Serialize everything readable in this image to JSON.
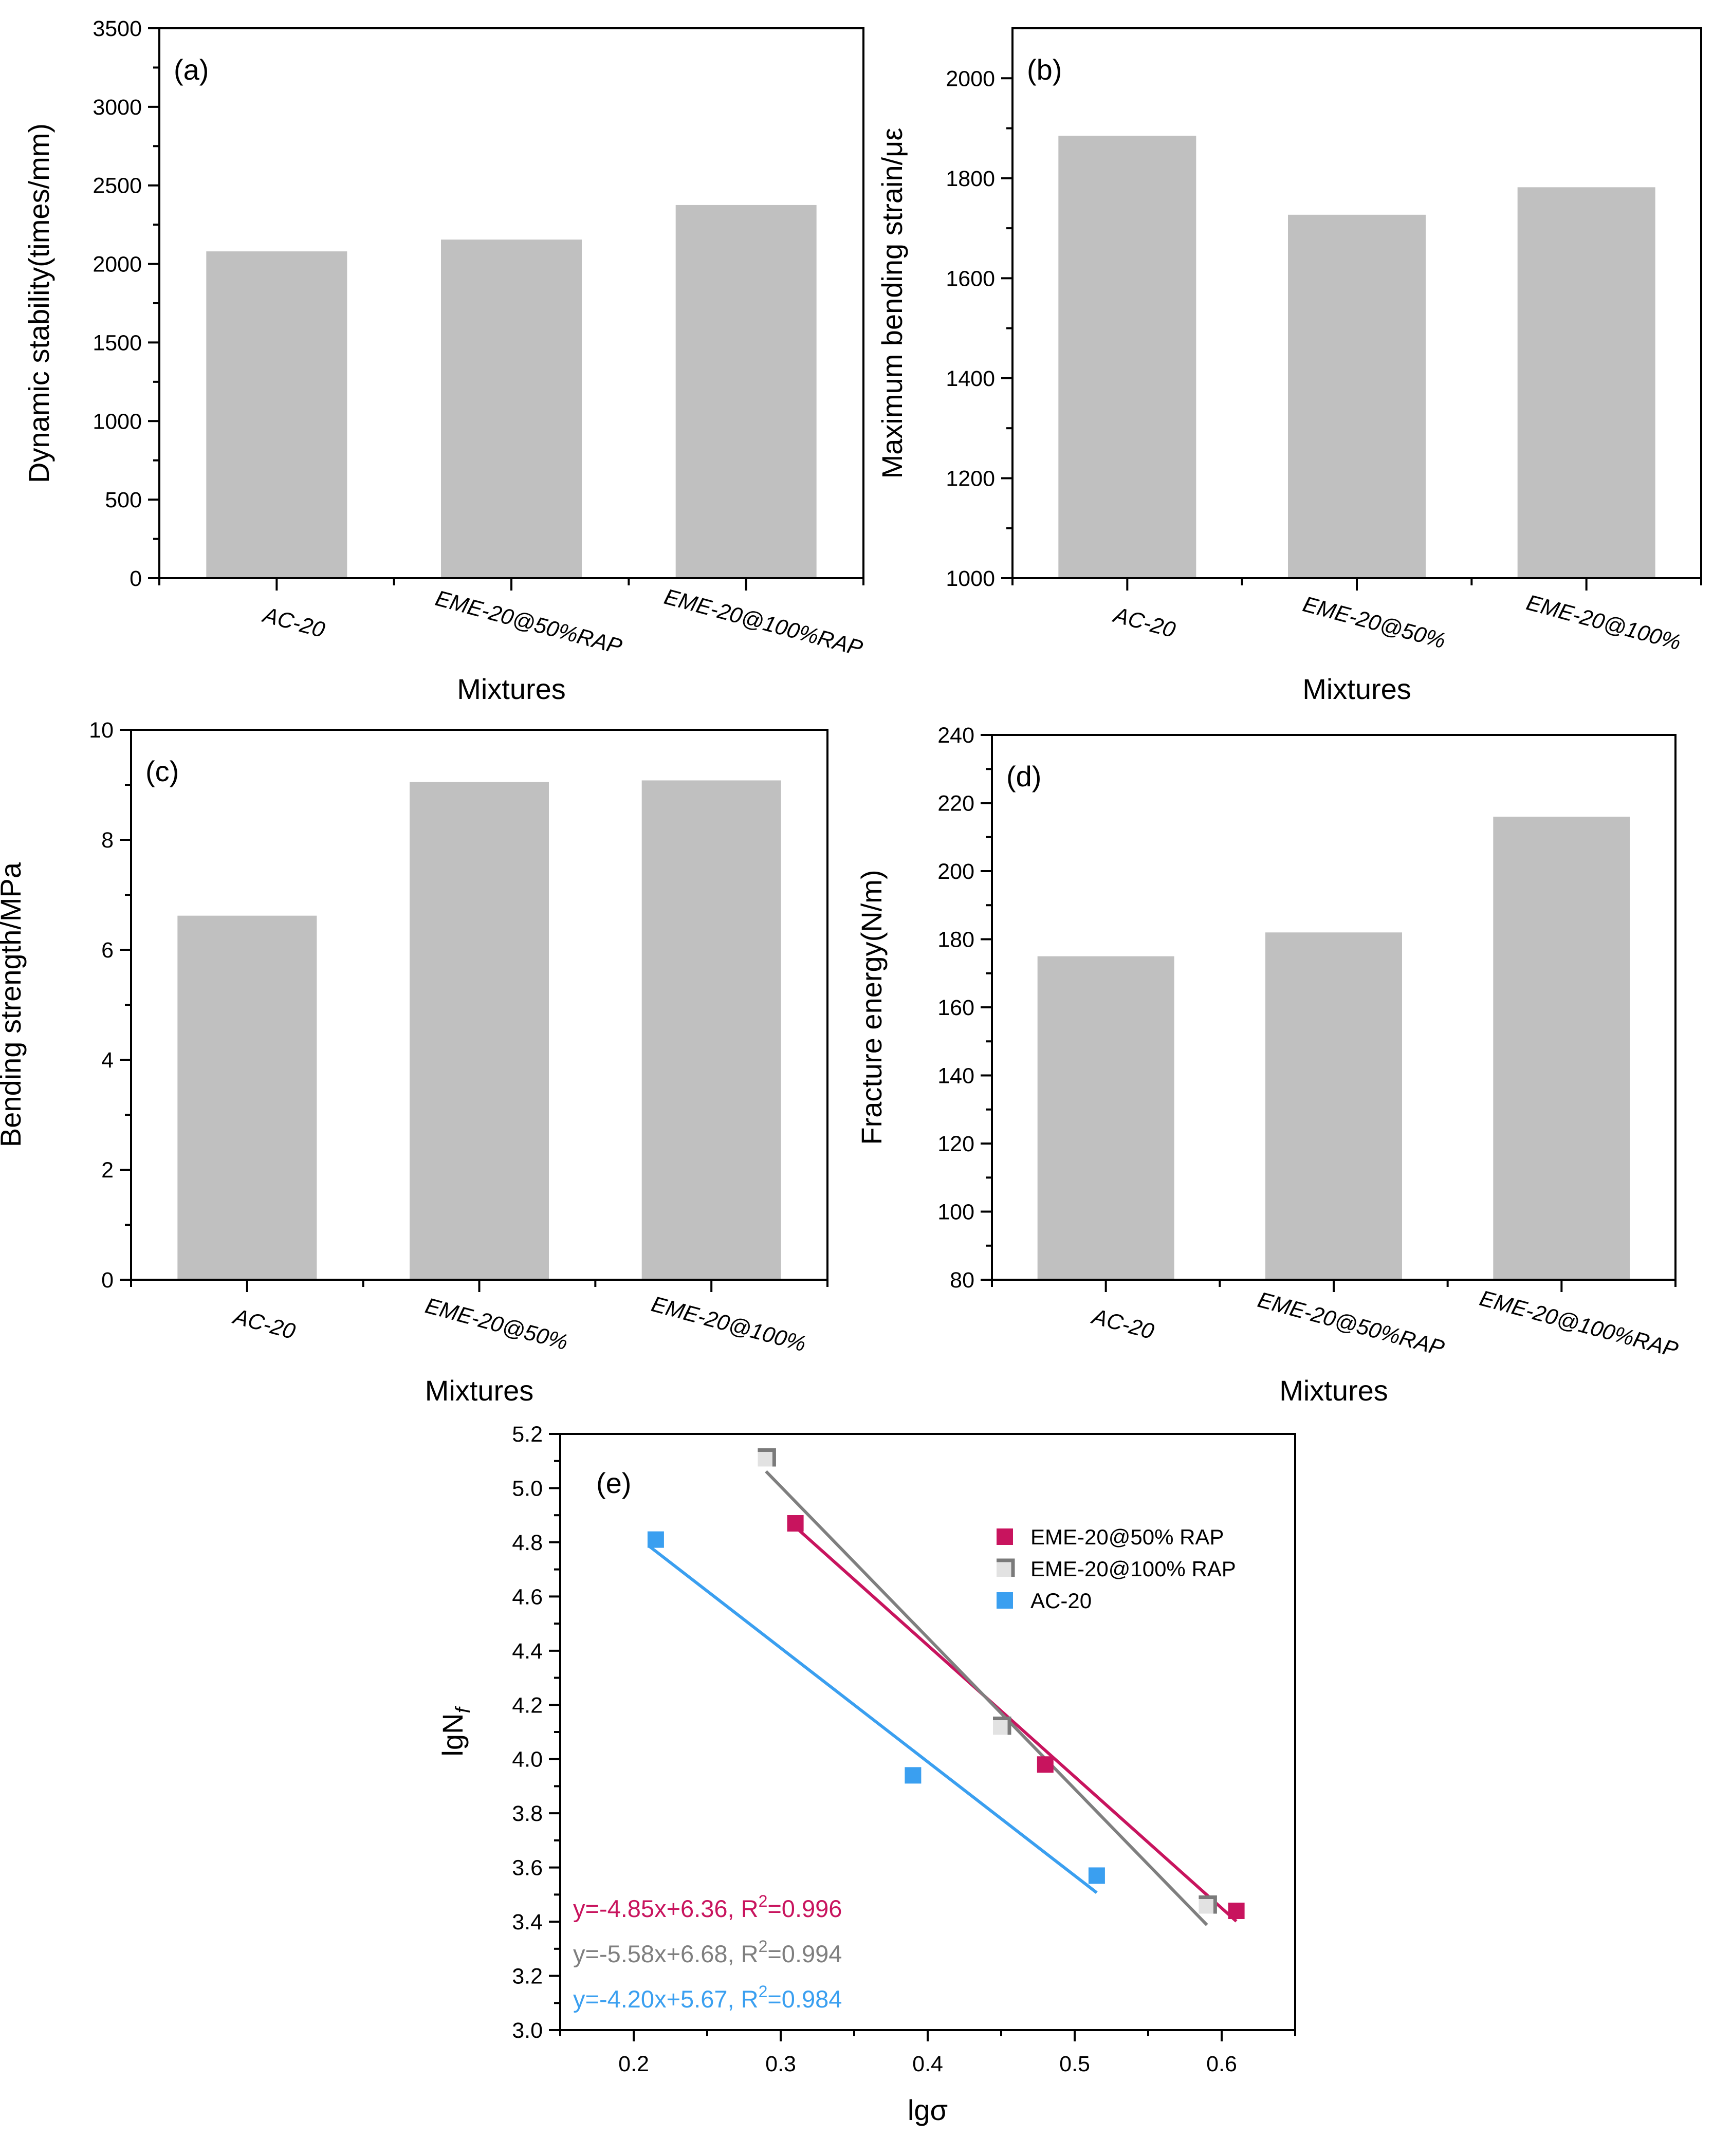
{
  "chart_data": [
    {
      "id": "a",
      "type": "bar",
      "panel_label": "(a)",
      "categories": [
        "AC-20",
        "EME-20@50%RAP",
        "EME-20@100%RAP"
      ],
      "values": [
        2080,
        2155,
        2375
      ],
      "xlabel": "Mixtures",
      "ylabel": "Dynamic stability(times/mm)",
      "ylim": [
        0,
        3500
      ],
      "yticks": [
        0,
        500,
        1000,
        1500,
        2000,
        2500,
        3000,
        3500
      ],
      "ytick_labels": [
        "0",
        "500",
        "1000",
        "1500",
        "2000",
        "2500",
        "3000",
        "3500"
      ],
      "bar_color": "#c0c0c0"
    },
    {
      "id": "b",
      "type": "bar",
      "panel_label": "(b)",
      "categories": [
        "AC-20",
        "EME-20@50%",
        "EME-20@100%"
      ],
      "values": [
        1885,
        1727,
        1782
      ],
      "xlabel": "Mixtures",
      "ylabel": "Maximum bending strain/με",
      "ylim": [
        1000,
        2100
      ],
      "yticks": [
        1000,
        1200,
        1400,
        1600,
        1800,
        2000
      ],
      "ytick_labels": [
        "1000",
        "1200",
        "1400",
        "1600",
        "1800",
        "2000"
      ],
      "bar_color": "#c0c0c0"
    },
    {
      "id": "c",
      "type": "bar",
      "panel_label": "(c)",
      "categories": [
        "AC-20",
        "EME-20@50%",
        "EME-20@100%"
      ],
      "values": [
        6.62,
        9.05,
        9.08
      ],
      "xlabel": "Mixtures",
      "ylabel": "Bending strength/MPa",
      "ylim": [
        0,
        10
      ],
      "yticks": [
        0,
        2,
        4,
        6,
        8,
        10
      ],
      "ytick_labels": [
        "0",
        "2",
        "4",
        "6",
        "8",
        "10"
      ],
      "bar_color": "#c0c0c0"
    },
    {
      "id": "d",
      "type": "bar",
      "panel_label": "(d)",
      "categories": [
        "AC-20",
        "EME-20@50%RAP",
        "EME-20@100%RAP"
      ],
      "values": [
        175,
        182,
        216
      ],
      "xlabel": "Mixtures",
      "ylabel": "Fracture energy(N/m)",
      "ylim": [
        80,
        240
      ],
      "yticks": [
        80,
        100,
        120,
        140,
        160,
        180,
        200,
        220,
        240
      ],
      "ytick_labels": [
        "80",
        "100",
        "120",
        "140",
        "160",
        "180",
        "200",
        "220",
        "240"
      ],
      "bar_color": "#c0c0c0"
    },
    {
      "id": "e",
      "type": "scatter",
      "panel_label": "(e)",
      "xlabel": "lgσ",
      "ylabel_main": "lgN",
      "ylabel_sub": "f",
      "xlim": [
        0.15,
        0.65
      ],
      "ylim": [
        3.0,
        5.2
      ],
      "xticks": [
        0.2,
        0.3,
        0.4,
        0.5,
        0.6
      ],
      "xtick_labels": [
        "0.2",
        "0.3",
        "0.4",
        "0.5",
        "0.6"
      ],
      "yticks": [
        3.0,
        3.2,
        3.4,
        3.6,
        3.8,
        4.0,
        4.2,
        4.4,
        4.6,
        4.8,
        5.0,
        5.2
      ],
      "ytick_labels": [
        "3.0",
        "3.2",
        "3.4",
        "3.6",
        "3.8",
        "4.0",
        "4.2",
        "4.4",
        "4.6",
        "4.8",
        "5.0",
        "5.2"
      ],
      "series": [
        {
          "name": "EME-20@50% RAP",
          "color": "#c8145e",
          "marker": "square",
          "x": [
            0.31,
            0.48,
            0.61
          ],
          "y": [
            4.87,
            3.98,
            3.44
          ],
          "fit_x": [
            0.31,
            0.61
          ],
          "equation_prefix": "y=-4.85x+6.36, R",
          "r2_sup": "2",
          "r2_suffix": "=0.996"
        },
        {
          "name": "EME-20@100% RAP",
          "color": "#7f7f7f",
          "marker": "square-shaded",
          "x": [
            0.29,
            0.45,
            0.59
          ],
          "y": [
            5.11,
            4.12,
            3.46
          ],
          "fit_x": [
            0.29,
            0.59
          ],
          "equation_prefix": "y=-5.58x+6.68, R",
          "r2_sup": "2",
          "r2_suffix": "=0.994"
        },
        {
          "name": "AC-20",
          "color": "#3a9ff0",
          "marker": "square",
          "x": [
            0.215,
            0.39,
            0.515
          ],
          "y": [
            4.81,
            3.94,
            3.57
          ],
          "fit_x": [
            0.21,
            0.515
          ],
          "equation_prefix": "y=-4.20x+5.67, R",
          "r2_sup": "2",
          "r2_suffix": "=0.984"
        }
      ]
    }
  ]
}
